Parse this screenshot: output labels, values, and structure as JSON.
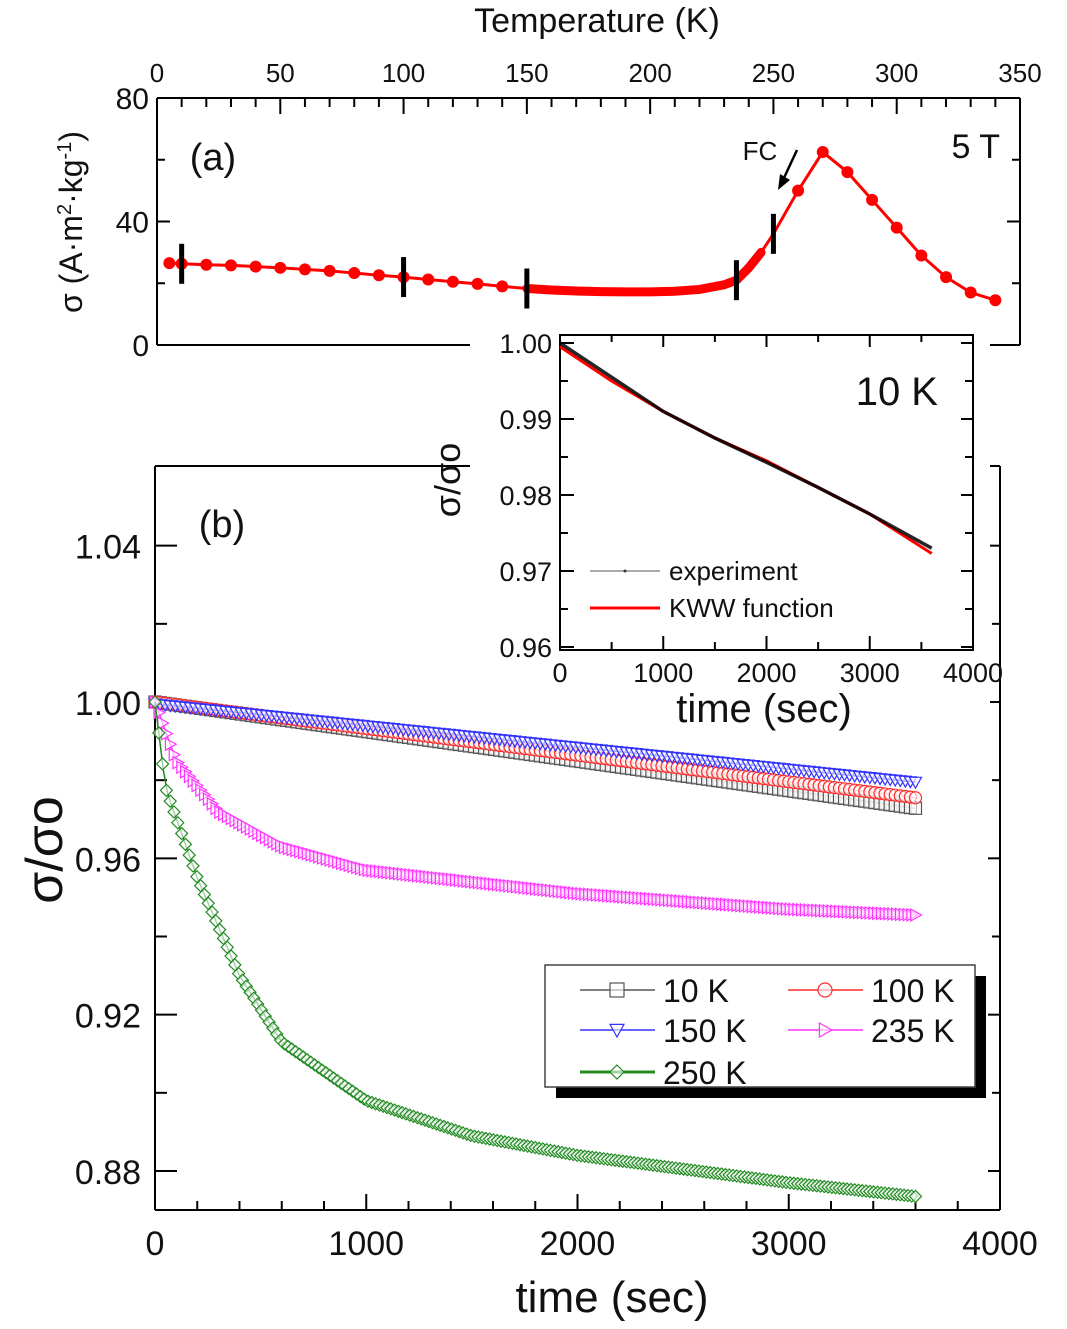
{
  "chart_data": [
    {
      "id": "panel_a",
      "type": "line",
      "panel_label": "(a)",
      "annotation_field": "5 T",
      "annotation_arrow": "FC",
      "xlabel": "Temperature (K)",
      "ylabel": "σ (A·m²·kg⁻¹)",
      "ylabel_parts": {
        "main": "σ (A·m",
        "sup1": "2",
        "mid": "·kg",
        "sup2": "-1",
        "end": ")"
      },
      "xlim": [
        0,
        350
      ],
      "ylim": [
        0,
        80
      ],
      "xticks": [
        0,
        50,
        100,
        150,
        200,
        250,
        300,
        350
      ],
      "yticks": [
        0,
        40,
        80
      ],
      "color": "#ff0000",
      "series": [
        {
          "name": "FC 5 T",
          "x": [
            5,
            10,
            20,
            30,
            40,
            50,
            60,
            70,
            80,
            90,
            100,
            110,
            120,
            130,
            140,
            150,
            160,
            170,
            180,
            190,
            200,
            210,
            220,
            230,
            235,
            240,
            245,
            250,
            260,
            270,
            280,
            290,
            300,
            310,
            320,
            330,
            340
          ],
          "y": [
            26.5,
            26.3,
            26,
            25.8,
            25.4,
            25,
            24.5,
            24,
            23.3,
            22.6,
            22,
            21.2,
            20.5,
            19.8,
            19,
            18.3,
            17.8,
            17.5,
            17.3,
            17.2,
            17.2,
            17.4,
            18,
            19.5,
            21,
            25,
            30,
            36,
            50,
            62.5,
            56,
            47,
            38,
            29,
            22,
            17,
            14.5
          ]
        }
      ],
      "markers_at_T": [
        10,
        100,
        150,
        235,
        250
      ]
    },
    {
      "id": "panel_b",
      "type": "scatter",
      "panel_label": "(b)",
      "xlabel": "time (sec)",
      "ylabel": "σ/σo",
      "xlim": [
        0,
        4000
      ],
      "ylim": [
        0.868,
        1.06
      ],
      "xticks": [
        0,
        1000,
        2000,
        3000,
        4000
      ],
      "yticks": [
        0.88,
        0.92,
        0.96,
        1.0,
        1.04
      ],
      "ytick_labels": [
        "0.88",
        "0.92",
        "0.96",
        "1.00",
        "1.04"
      ],
      "legend_position": "bottom-right",
      "series": [
        {
          "name": "10 K",
          "color": "#555555",
          "marker": "square",
          "t_end": 3600,
          "y0": 1.0,
          "y_end": 0.9728,
          "shape": "linear"
        },
        {
          "name": "100 K",
          "color": "#ff2a2a",
          "marker": "circle",
          "t_end": 3600,
          "y0": 1.0,
          "y_end": 0.9755,
          "shape": "linear"
        },
        {
          "name": "150 K",
          "color": "#3333ff",
          "marker": "triangle-down",
          "t_end": 3600,
          "y0": 0.9995,
          "y_end": 0.9795,
          "shape": "linear"
        },
        {
          "name": "235 K",
          "color": "#ff33ff",
          "marker": "triangle-right",
          "t_end": 3600,
          "y0": 1.0,
          "y_end": 0.9455,
          "shape": "stretched"
        },
        {
          "name": "250 K",
          "color": "#228b22",
          "marker": "diamond",
          "t_end": 3600,
          "y0": 1.0,
          "y_end": 0.8735,
          "shape": "stretched"
        }
      ],
      "sample_points": {
        "235 K": [
          [
            0,
            1.0
          ],
          [
            100,
            0.985
          ],
          [
            300,
            0.972
          ],
          [
            600,
            0.963
          ],
          [
            1000,
            0.957
          ],
          [
            2000,
            0.951
          ],
          [
            3000,
            0.947
          ],
          [
            3600,
            0.9455
          ]
        ],
        "250 K": [
          [
            0,
            1.0
          ],
          [
            50,
            0.978
          ],
          [
            200,
            0.955
          ],
          [
            400,
            0.93
          ],
          [
            600,
            0.913
          ],
          [
            1000,
            0.898
          ],
          [
            1500,
            0.889
          ],
          [
            2000,
            0.884
          ],
          [
            3000,
            0.877
          ],
          [
            3600,
            0.8735
          ]
        ]
      }
    },
    {
      "id": "inset",
      "type": "line",
      "annotation": "10 K",
      "xlabel": "time (sec)",
      "ylabel": "σ/σo",
      "xlim": [
        0,
        4000
      ],
      "ylim": [
        0.96,
        1.0
      ],
      "xticks": [
        0,
        1000,
        2000,
        3000,
        4000
      ],
      "yticks": [
        0.96,
        0.97,
        0.98,
        0.99,
        1.0
      ],
      "ytick_labels": [
        "0.96",
        "0.97",
        "0.98",
        "0.99",
        "1.00"
      ],
      "legend_position": "bottom-left",
      "series": [
        {
          "name": "experiment",
          "color": "#000000",
          "x": [
            0,
            500,
            1000,
            1500,
            2000,
            2500,
            3000,
            3600
          ],
          "y": [
            1.0,
            0.9955,
            0.991,
            0.9875,
            0.9843,
            0.981,
            0.9775,
            0.973
          ]
        },
        {
          "name": "KWW function",
          "color": "#ff0000",
          "x": [
            0,
            500,
            1000,
            1500,
            2000,
            2500,
            3000,
            3600
          ],
          "y": [
            0.9995,
            0.995,
            0.991,
            0.9875,
            0.9845,
            0.981,
            0.9775,
            0.9723
          ]
        }
      ]
    }
  ]
}
